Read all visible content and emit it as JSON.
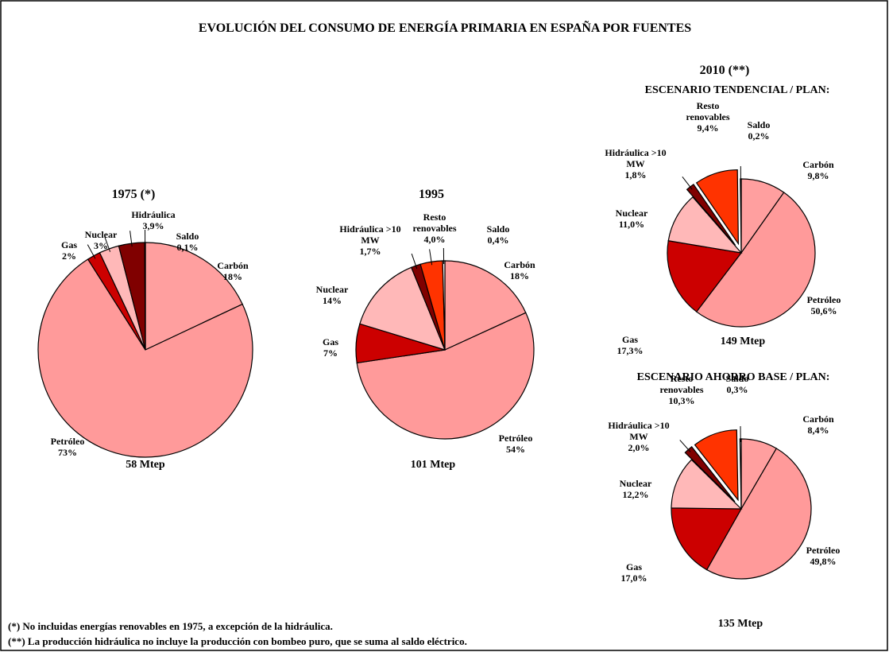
{
  "title": "EVOLUCIÓN DEL CONSUMO DE ENERGÍA PRIMARIA EN ESPAÑA POR FUENTES",
  "group_title": "2010 (**)",
  "footnotes": [
    "(*) No incluidas energías renovables en 1975, a excepción de la hidráulica.",
    "(**) La producción hidráulica no incluye la producción con bombeo puro, que se suma al saldo eléctrico."
  ],
  "chart_data": [
    {
      "type": "pie",
      "title": "1975  (*)",
      "total": "58 Mtep",
      "categories": [
        "Carbón",
        "Petróleo",
        "Gas",
        "Nuclear",
        "Hidráulica",
        "Saldo"
      ],
      "values": [
        18,
        73,
        2,
        3,
        3.9,
        0.1
      ],
      "value_labels": [
        "18%",
        "73%",
        "2%",
        "3%",
        "3,9%",
        "0,1%"
      ],
      "colors": [
        "#ff9f9f",
        "#ff9a9a",
        "#cc0000",
        "#ffb8b8",
        "#800000",
        "#ffffff"
      ],
      "explode": [
        false,
        false,
        false,
        false,
        false,
        false
      ]
    },
    {
      "type": "pie",
      "title": "1995",
      "total": "101 Mtep",
      "categories": [
        "Carbón",
        "Petróleo",
        "Gas",
        "Nuclear",
        "Hidráulica >10 MW",
        "Resto renovables",
        "Saldo"
      ],
      "values": [
        18,
        54,
        7,
        14,
        1.7,
        4.0,
        0.4
      ],
      "value_labels": [
        "18%",
        "54%",
        "7%",
        "14%",
        "1,7%",
        "4,0%",
        "0,4%"
      ],
      "colors": [
        "#ff9f9f",
        "#ff9a9a",
        "#cc0000",
        "#ffb8b8",
        "#800000",
        "#ff3300",
        "#ffffff"
      ],
      "explode": [
        false,
        false,
        false,
        false,
        false,
        false,
        false
      ]
    },
    {
      "type": "pie",
      "title": "ESCENARIO TENDENCIAL / PLAN:",
      "total": "149 Mtep",
      "categories": [
        "Carbón",
        "Petróleo",
        "Gas",
        "Nuclear",
        "Hidráulica >10 MW",
        "Resto renovables",
        "Saldo"
      ],
      "values": [
        9.8,
        50.6,
        17.3,
        11.0,
        1.8,
        9.4,
        0.2
      ],
      "value_labels": [
        "9,8%",
        "50,6%",
        "17,3%",
        "11,0%",
        "1,8%",
        "9,4%",
        "0,2%"
      ],
      "colors": [
        "#ff9f9f",
        "#ff9a9a",
        "#cc0000",
        "#ffb8b8",
        "#800000",
        "#ff3300",
        "#ffffff"
      ],
      "explode": [
        false,
        false,
        false,
        false,
        true,
        true,
        false
      ]
    },
    {
      "type": "pie",
      "title": "ESCENARIO AHORRO BASE / PLAN:",
      "total": "135 Mtep",
      "categories": [
        "Carbón",
        "Petróleo",
        "Gas",
        "Nuclear",
        "Hidráulica >10 MW",
        "Resto renovables",
        "Saldo"
      ],
      "values": [
        8.4,
        49.8,
        17.0,
        12.2,
        2.0,
        10.3,
        0.3
      ],
      "value_labels": [
        "8,4%",
        "49,8%",
        "17,0%",
        "12,2%",
        "2,0%",
        "10,3%",
        "0,3%"
      ],
      "colors": [
        "#ff9f9f",
        "#ff9a9a",
        "#cc0000",
        "#ffb8b8",
        "#800000",
        "#ff3300",
        "#ffffff"
      ],
      "explode": [
        false,
        false,
        false,
        false,
        true,
        true,
        false
      ]
    }
  ]
}
